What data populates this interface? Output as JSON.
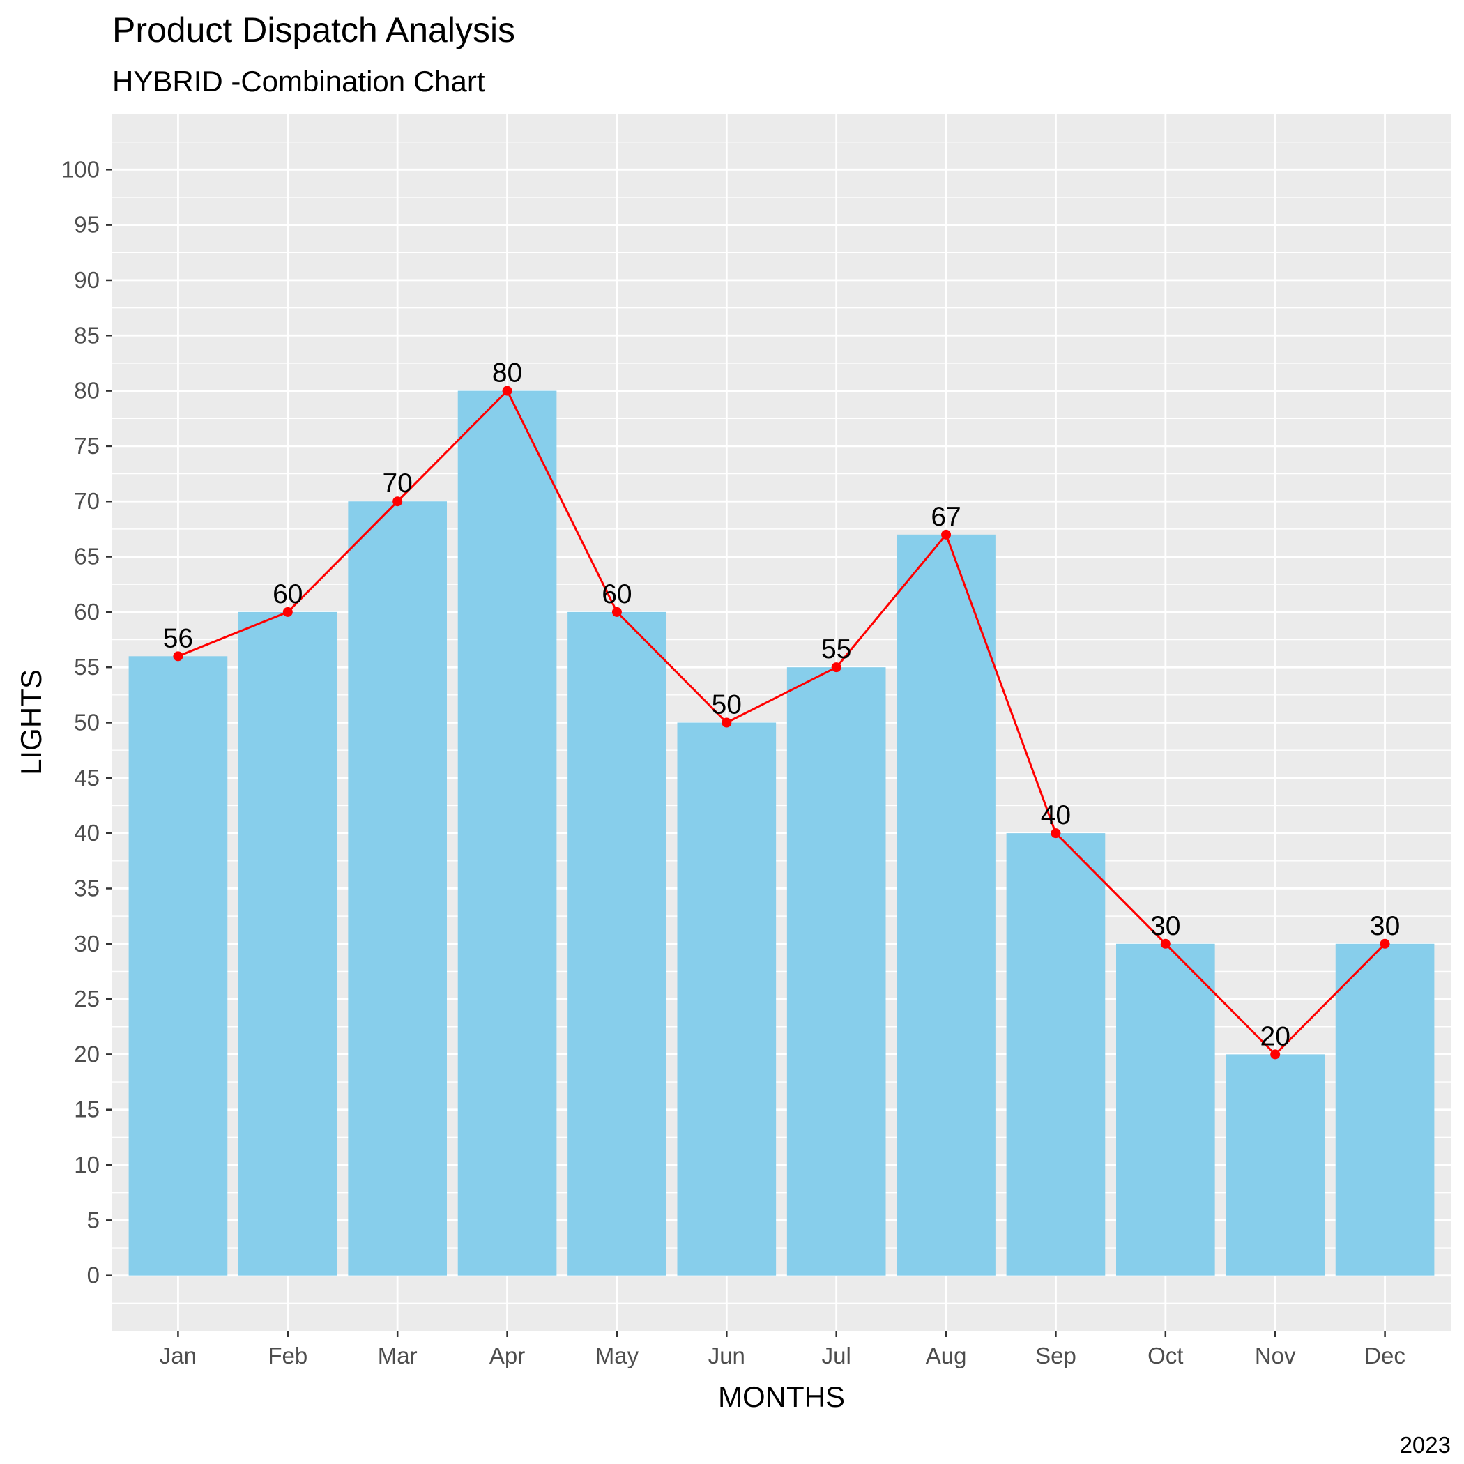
{
  "chart_data": {
    "type": "bar",
    "title": "Product Dispatch Analysis",
    "subtitle": "HYBRID -Combination Chart",
    "caption": "2023",
    "xlabel": "MONTHS",
    "ylabel": "LIGHTS",
    "categories": [
      "Jan",
      "Feb",
      "Mar",
      "Apr",
      "May",
      "Jun",
      "Jul",
      "Aug",
      "Sep",
      "Oct",
      "Nov",
      "Dec"
    ],
    "values": [
      56,
      60,
      70,
      80,
      60,
      50,
      55,
      67,
      40,
      30,
      20,
      30
    ],
    "overlay": {
      "type": "line",
      "points": true,
      "values": [
        56,
        60,
        70,
        80,
        60,
        50,
        55,
        67,
        40,
        30,
        20,
        30
      ]
    },
    "data_labels": [
      "56",
      "60",
      "70",
      "80",
      "60",
      "50",
      "55",
      "67",
      "40",
      "30",
      "20",
      "30"
    ],
    "yticks": [
      0,
      5,
      10,
      15,
      20,
      25,
      30,
      35,
      40,
      45,
      50,
      55,
      60,
      65,
      70,
      75,
      80,
      85,
      90,
      95,
      100
    ],
    "ylim": [
      -5,
      105
    ],
    "grid": true,
    "legend": "none",
    "colors": {
      "bar": "#87CEEB",
      "line": "#FF0000",
      "panel": "#EBEBEB",
      "grid": "#FFFFFF"
    }
  }
}
